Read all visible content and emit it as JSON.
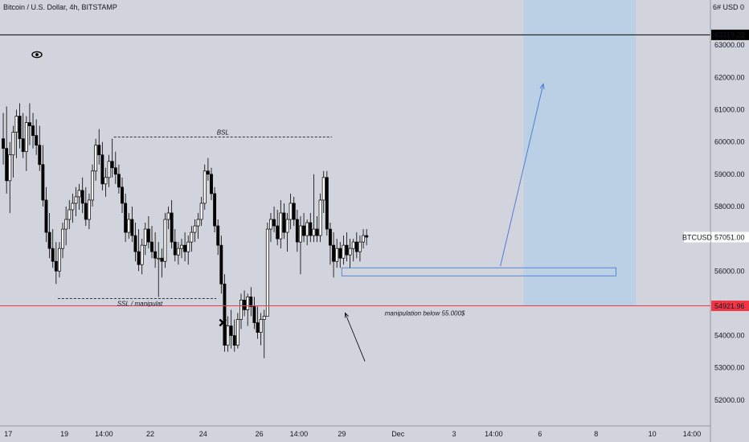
{
  "header": {
    "title": "Bitcoin / U.S. Dollar, 4h, BITSTAMP",
    "axis_unit": "6# USD 0"
  },
  "colors": {
    "background": "#d1d4dc",
    "candle": "#000000",
    "box": "#b9cfe6",
    "redline": "#f23645",
    "blackline": "#000000",
    "arrow": "#4a7fd6",
    "zone": "#4a7fd6"
  },
  "chart_data": {
    "type": "candlestick",
    "symbol": "BTCUSD",
    "timeframe": "4h",
    "ylim": [
      51200,
      64400
    ],
    "y_ticks": [
      "52000.00",
      "53000.00",
      "54000.00",
      "55000.00",
      "56000.00",
      "57000.00",
      "58000.00",
      "59000.00",
      "60000.00",
      "61000.00",
      "62000.00",
      "63000.00"
    ],
    "x_ticks": [
      "17",
      "19",
      "14:00",
      "22",
      "24",
      "26",
      "14:00",
      "29",
      "Dec",
      "3",
      "14:00",
      "6",
      "8",
      "10",
      "14:00"
    ],
    "x_tick_positions": [
      2,
      19,
      31,
      45,
      61,
      78,
      90,
      103,
      120,
      137,
      149,
      163,
      180,
      197,
      209
    ],
    "price_tags": {
      "last": {
        "label": "BTCUSD",
        "value": "57051.00",
        "price": 57051
      },
      "black_level": {
        "value": "63319.22",
        "price": 63319.22
      },
      "red_level": {
        "value": "54921.96",
        "price": 54921.96
      }
    },
    "annotations": {
      "bsl": "BSL",
      "ssl": "SSL / manipulat",
      "manipulation": "manipulation below 55.000$"
    },
    "bsl_level": 60150,
    "ssl_level": 55150,
    "zone": {
      "low": 55850,
      "high": 56100,
      "from": 103,
      "to": 186
    },
    "projection_box": {
      "from": 158,
      "to": 192,
      "low": 54921.96,
      "high": 64400
    },
    "projection_arrow": {
      "from": [
        151,
        56150
      ],
      "to": [
        164,
        61800
      ]
    },
    "pointer_arrow": {
      "from": [
        110,
        53200
      ],
      "to": [
        104,
        54700
      ]
    },
    "cross_marker": {
      "x": 67,
      "price": 54400
    },
    "candles": [
      [
        60100,
        60900,
        59300,
        59800
      ],
      [
        59800,
        61100,
        58400,
        58800
      ],
      [
        58800,
        60000,
        57800,
        59600
      ],
      [
        59600,
        60500,
        58900,
        60300
      ],
      [
        60300,
        61000,
        59500,
        60800
      ],
      [
        60800,
        61200,
        59800,
        60100
      ],
      [
        60100,
        60900,
        59500,
        59700
      ],
      [
        59700,
        60800,
        59100,
        60600
      ],
      [
        60600,
        61200,
        59900,
        60500
      ],
      [
        60500,
        60900,
        59800,
        60200
      ],
      [
        60200,
        60700,
        59600,
        59900
      ],
      [
        59900,
        60500,
        59100,
        59300
      ],
      [
        59300,
        59900,
        58000,
        58200
      ],
      [
        58200,
        58600,
        56900,
        57200
      ],
      [
        57200,
        57800,
        56400,
        56700
      ],
      [
        56700,
        57300,
        56100,
        56300
      ],
      [
        56300,
        56900,
        55600,
        56000
      ],
      [
        56000,
        56900,
        55800,
        56700
      ],
      [
        56700,
        57500,
        56400,
        57300
      ],
      [
        57300,
        58000,
        56800,
        57600
      ],
      [
        57600,
        58200,
        57300,
        57900
      ],
      [
        57900,
        58400,
        57500,
        58100
      ],
      [
        58100,
        58600,
        57700,
        58300
      ],
      [
        58300,
        58700,
        57900,
        58500
      ],
      [
        58500,
        58900,
        57800,
        58100
      ],
      [
        58100,
        58600,
        57400,
        57600
      ],
      [
        57600,
        58400,
        57300,
        58200
      ],
      [
        58200,
        59300,
        58000,
        59100
      ],
      [
        59100,
        60100,
        58800,
        59900
      ],
      [
        59900,
        60400,
        59300,
        59600
      ],
      [
        59600,
        60000,
        58500,
        58700
      ],
      [
        58700,
        59200,
        58300,
        58900
      ],
      [
        58900,
        59600,
        58600,
        59400
      ],
      [
        59400,
        60100,
        58900,
        59200
      ],
      [
        59200,
        59700,
        58700,
        59000
      ],
      [
        59000,
        59300,
        58400,
        58600
      ],
      [
        58600,
        58900,
        57800,
        58100
      ],
      [
        58100,
        58400,
        56900,
        57200
      ],
      [
        57200,
        57800,
        57000,
        57600
      ],
      [
        57600,
        58000,
        56900,
        57100
      ],
      [
        57100,
        57500,
        56300,
        56600
      ],
      [
        56600,
        57300,
        56000,
        56200
      ],
      [
        56200,
        57000,
        55900,
        56800
      ],
      [
        56800,
        57500,
        56500,
        57300
      ],
      [
        57300,
        57700,
        56700,
        56900
      ],
      [
        56900,
        57400,
        56400,
        56600
      ],
      [
        56600,
        57200,
        56100,
        56400
      ],
      [
        56400,
        56900,
        55200,
        56400
      ],
      [
        56400,
        56700,
        55800,
        56300
      ],
      [
        56300,
        57800,
        56100,
        57600
      ],
      [
        57600,
        58000,
        57300,
        57800
      ],
      [
        57800,
        58200,
        56700,
        56900
      ],
      [
        56900,
        57300,
        56300,
        56500
      ],
      [
        56500,
        56900,
        56200,
        56700
      ],
      [
        56700,
        57000,
        56400,
        56800
      ],
      [
        56800,
        57200,
        56300,
        56600
      ],
      [
        56600,
        57100,
        56200,
        56900
      ],
      [
        56900,
        57400,
        56600,
        57200
      ],
      [
        57200,
        57600,
        56900,
        57400
      ],
      [
        57400,
        57800,
        57000,
        57600
      ],
      [
        57600,
        58300,
        57400,
        58100
      ],
      [
        58100,
        59300,
        57900,
        59100
      ],
      [
        59100,
        59500,
        58800,
        59000
      ],
      [
        59000,
        59200,
        58200,
        58400
      ],
      [
        58400,
        58600,
        57200,
        57400
      ],
      [
        57400,
        57600,
        56500,
        56800
      ],
      [
        56800,
        57100,
        55300,
        55600
      ],
      [
        55600,
        55900,
        53500,
        53700
      ],
      [
        53700,
        54600,
        53500,
        54300
      ],
      [
        54300,
        54800,
        53600,
        54000
      ],
      [
        54000,
        54500,
        53500,
        53700
      ],
      [
        53700,
        54700,
        53600,
        54500
      ],
      [
        54500,
        55300,
        54200,
        55100
      ],
      [
        55100,
        55400,
        54600,
        54800
      ],
      [
        54800,
        55300,
        54300,
        55200
      ],
      [
        55200,
        55500,
        54600,
        54900
      ],
      [
        54900,
        55200,
        54200,
        54400
      ],
      [
        54400,
        54900,
        53900,
        54100
      ],
      [
        54100,
        54700,
        53700,
        54500
      ],
      [
        54500,
        54800,
        53300,
        54600
      ],
      [
        54600,
        57500,
        54600,
        57300
      ],
      [
        57300,
        57800,
        56900,
        57600
      ],
      [
        57600,
        58000,
        57200,
        57400
      ],
      [
        57400,
        57900,
        56800,
        57000
      ],
      [
        57000,
        58200,
        56700,
        57800
      ],
      [
        57800,
        58100,
        57000,
        57200
      ],
      [
        57200,
        57800,
        56600,
        57600
      ],
      [
        57600,
        58400,
        57300,
        58100
      ],
      [
        58100,
        58300,
        57400,
        57600
      ],
      [
        57600,
        57900,
        56600,
        56900
      ],
      [
        56900,
        57700,
        55900,
        57400
      ],
      [
        57400,
        57800,
        56900,
        57100
      ],
      [
        57100,
        57600,
        56800,
        57500
      ],
      [
        57500,
        57800,
        56900,
        57100
      ],
      [
        57100,
        59000,
        56900,
        57300
      ],
      [
        57300,
        57700,
        56900,
        57100
      ],
      [
        57100,
        58400,
        56900,
        58200
      ],
      [
        58200,
        59100,
        57800,
        58900
      ],
      [
        58900,
        59100,
        57100,
        57300
      ],
      [
        57300,
        57500,
        56200,
        56800
      ],
      [
        56800,
        57200,
        55800,
        56300
      ],
      [
        56300,
        57000,
        56100,
        56700
      ],
      [
        56700,
        56900,
        56100,
        56400
      ],
      [
        56400,
        57100,
        56200,
        56800
      ],
      [
        56800,
        57200,
        56300,
        56500
      ],
      [
        56500,
        57000,
        56100,
        56700
      ],
      [
        56700,
        57000,
        56300,
        56900
      ],
      [
        56900,
        57200,
        56400,
        56600
      ],
      [
        56600,
        57100,
        56300,
        56900
      ],
      [
        56900,
        57300,
        56700,
        57100
      ],
      [
        57100,
        57300,
        56800,
        57051
      ]
    ]
  }
}
